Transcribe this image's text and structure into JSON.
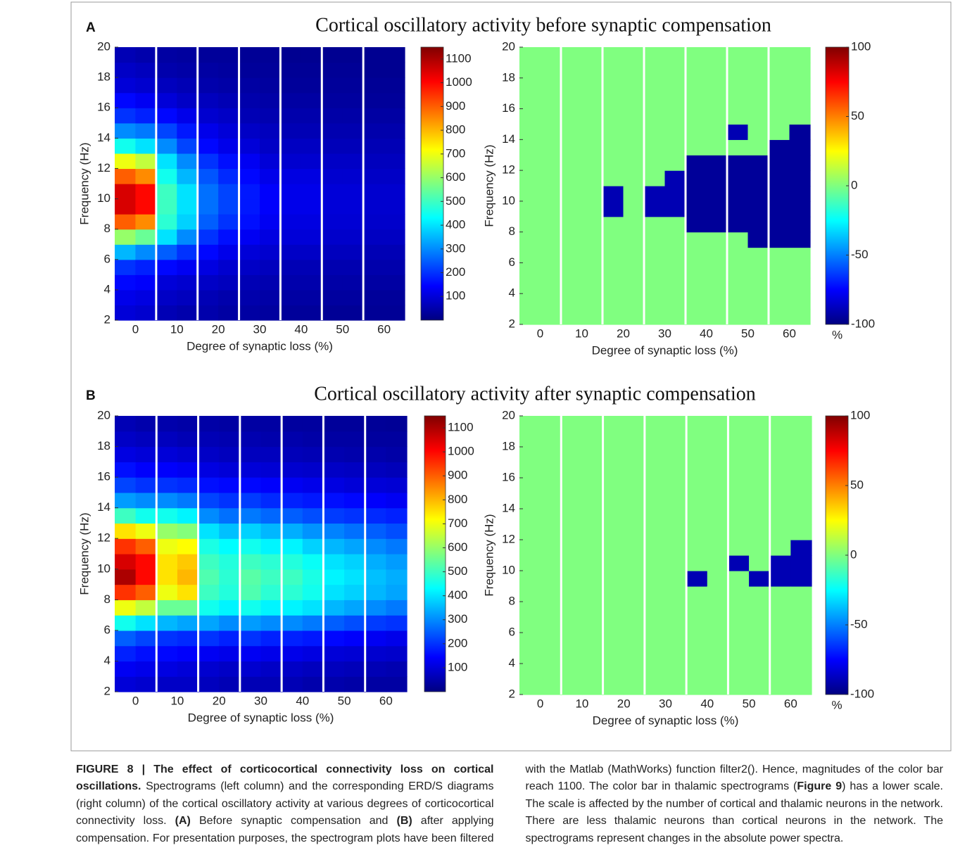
{
  "panels": [
    {
      "label": "A",
      "title": "Cortical oscillatory activity before synaptic compensation"
    },
    {
      "label": "B",
      "title": "Cortical oscillatory activity after synaptic compensation"
    }
  ],
  "chart_data": [
    {
      "type": "heatmap",
      "xlabel": "Degree of synaptic loss (%)",
      "ylabel": "Frequency (Hz)",
      "categories": [
        0,
        10,
        20,
        30,
        40,
        50,
        60
      ],
      "ylim": [
        2,
        20
      ],
      "yticks": [
        2,
        4,
        6,
        8,
        10,
        12,
        14,
        16,
        18,
        20
      ],
      "colorscale": "jet",
      "colorbar": {
        "lim": [
          0,
          1150
        ],
        "ticks": [
          100,
          200,
          300,
          400,
          500,
          600,
          700,
          800,
          900,
          1000,
          1100
        ]
      },
      "z": [
        [
          100,
          120,
          150,
          200,
          350,
          600,
          900,
          1050,
          1050,
          900,
          700,
          450,
          300,
          200,
          150,
          100,
          80,
          60
        ],
        [
          90,
          110,
          140,
          180,
          300,
          550,
          850,
          1000,
          1000,
          850,
          650,
          400,
          280,
          180,
          130,
          90,
          70,
          50
        ],
        [
          60,
          80,
          100,
          150,
          250,
          400,
          480,
          500,
          500,
          450,
          400,
          300,
          220,
          150,
          100,
          70,
          50,
          40
        ],
        [
          50,
          70,
          90,
          130,
          200,
          300,
          380,
          400,
          400,
          350,
          300,
          220,
          170,
          120,
          80,
          60,
          45,
          35
        ],
        [
          50,
          60,
          80,
          110,
          150,
          200,
          250,
          270,
          270,
          240,
          200,
          150,
          120,
          90,
          70,
          50,
          40,
          30
        ],
        [
          40,
          50,
          70,
          90,
          120,
          160,
          200,
          220,
          220,
          190,
          160,
          120,
          100,
          80,
          60,
          45,
          35,
          30
        ],
        [
          40,
          50,
          60,
          80,
          100,
          130,
          160,
          170,
          170,
          150,
          130,
          100,
          80,
          60,
          50,
          40,
          30,
          25
        ],
        [
          35,
          45,
          55,
          70,
          90,
          110,
          130,
          140,
          140,
          120,
          100,
          80,
          70,
          55,
          45,
          35,
          30,
          25
        ],
        [
          30,
          40,
          50,
          60,
          80,
          100,
          110,
          120,
          120,
          110,
          90,
          75,
          60,
          50,
          40,
          30,
          25,
          20
        ],
        [
          30,
          40,
          50,
          60,
          80,
          100,
          110,
          120,
          120,
          110,
          90,
          75,
          60,
          50,
          40,
          30,
          25,
          20
        ],
        [
          25,
          35,
          45,
          55,
          70,
          85,
          95,
          100,
          100,
          90,
          80,
          65,
          55,
          45,
          35,
          30,
          25,
          20
        ],
        [
          25,
          35,
          45,
          55,
          70,
          85,
          95,
          100,
          100,
          90,
          80,
          65,
          55,
          45,
          35,
          30,
          25,
          20
        ],
        [
          25,
          30,
          40,
          50,
          60,
          75,
          85,
          90,
          90,
          80,
          70,
          60,
          50,
          40,
          30,
          25,
          20,
          20
        ],
        [
          25,
          30,
          40,
          50,
          60,
          75,
          85,
          90,
          90,
          80,
          70,
          60,
          50,
          40,
          30,
          25,
          20,
          20
        ]
      ]
    },
    {
      "type": "heatmap",
      "xlabel": "Degree of synaptic loss (%)",
      "ylabel": "Frequency (Hz)",
      "categories": [
        0,
        10,
        20,
        30,
        40,
        50,
        60
      ],
      "ylim": [
        2,
        20
      ],
      "yticks": [
        2,
        4,
        6,
        8,
        10,
        12,
        14,
        16,
        18,
        20
      ],
      "colorscale": "jet",
      "colorbar": {
        "lim": [
          -100,
          100
        ],
        "ticks": [
          -100,
          -50,
          0,
          50,
          100
        ],
        "label": "%"
      },
      "z": [
        [
          0,
          0,
          0,
          0,
          0,
          0,
          0,
          0,
          0,
          0,
          0,
          0,
          0,
          0,
          0,
          0,
          0,
          0
        ],
        [
          0,
          0,
          0,
          0,
          0,
          0,
          0,
          0,
          0,
          0,
          0,
          0,
          0,
          0,
          0,
          0,
          0,
          0
        ],
        [
          0,
          0,
          0,
          0,
          0,
          0,
          0,
          0,
          0,
          0,
          0,
          0,
          0,
          0,
          0,
          0,
          0,
          0
        ],
        [
          0,
          0,
          0,
          0,
          0,
          0,
          0,
          0,
          0,
          0,
          0,
          0,
          0,
          0,
          0,
          0,
          0,
          0
        ],
        [
          0,
          0,
          0,
          0,
          0,
          0,
          0,
          -90,
          -90,
          0,
          0,
          0,
          0,
          0,
          0,
          0,
          0,
          0
        ],
        [
          0,
          0,
          0,
          0,
          0,
          0,
          0,
          0,
          0,
          0,
          0,
          0,
          0,
          0,
          0,
          0,
          0,
          0
        ],
        [
          0,
          0,
          0,
          0,
          0,
          0,
          0,
          -90,
          -90,
          0,
          0,
          0,
          0,
          0,
          0,
          0,
          0,
          0
        ],
        [
          0,
          0,
          0,
          0,
          0,
          0,
          0,
          -90,
          -90,
          -90,
          0,
          0,
          0,
          0,
          0,
          0,
          0,
          0
        ],
        [
          0,
          0,
          0,
          0,
          0,
          0,
          -95,
          -95,
          -95,
          -95,
          -95,
          0,
          0,
          0,
          0,
          0,
          0,
          0
        ],
        [
          0,
          0,
          0,
          0,
          0,
          0,
          -95,
          -95,
          -95,
          -95,
          -95,
          0,
          0,
          0,
          0,
          0,
          0,
          0
        ],
        [
          0,
          0,
          0,
          0,
          0,
          0,
          -95,
          -95,
          -95,
          -95,
          -95,
          0,
          -90,
          0,
          0,
          0,
          0,
          0
        ],
        [
          0,
          0,
          0,
          0,
          0,
          -95,
          -95,
          -95,
          -95,
          -95,
          -95,
          0,
          0,
          0,
          0,
          0,
          0,
          0
        ],
        [
          0,
          0,
          0,
          0,
          0,
          -95,
          -95,
          -95,
          -95,
          -95,
          -95,
          -95,
          0,
          0,
          0,
          0,
          0,
          0
        ],
        [
          0,
          0,
          0,
          0,
          0,
          -95,
          -95,
          -95,
          -95,
          -95,
          -95,
          -95,
          -95,
          0,
          0,
          0,
          0,
          0
        ]
      ]
    },
    {
      "type": "heatmap",
      "xlabel": "Degree of synaptic loss (%)",
      "ylabel": "Frequency (Hz)",
      "categories": [
        0,
        10,
        20,
        30,
        40,
        50,
        60
      ],
      "ylim": [
        2,
        20
      ],
      "yticks": [
        2,
        4,
        6,
        8,
        10,
        12,
        14,
        16,
        18,
        20
      ],
      "colorscale": "jet",
      "colorbar": {
        "lim": [
          0,
          1150
        ],
        "ticks": [
          100,
          200,
          300,
          400,
          500,
          600,
          700,
          800,
          900,
          1000,
          1100
        ]
      },
      "z": [
        [
          100,
          130,
          180,
          250,
          450,
          700,
          950,
          1100,
          1050,
          950,
          750,
          500,
          320,
          220,
          160,
          110,
          80,
          60
        ],
        [
          90,
          120,
          160,
          220,
          400,
          650,
          900,
          1000,
          1000,
          900,
          700,
          450,
          300,
          200,
          140,
          100,
          70,
          50
        ],
        [
          80,
          110,
          150,
          200,
          350,
          550,
          700,
          750,
          750,
          700,
          600,
          450,
          300,
          200,
          140,
          100,
          70,
          50
        ],
        [
          80,
          100,
          140,
          190,
          330,
          550,
          750,
          800,
          780,
          720,
          580,
          420,
          280,
          190,
          130,
          90,
          60,
          45
        ],
        [
          70,
          90,
          130,
          200,
          330,
          450,
          500,
          520,
          500,
          460,
          400,
          300,
          220,
          160,
          110,
          80,
          60,
          45
        ],
        [
          60,
          80,
          120,
          180,
          300,
          420,
          470,
          480,
          470,
          430,
          360,
          270,
          200,
          150,
          100,
          70,
          55,
          40
        ],
        [
          60,
          90,
          130,
          200,
          320,
          450,
          520,
          530,
          500,
          450,
          380,
          280,
          210,
          150,
          100,
          70,
          55,
          40
        ],
        [
          60,
          80,
          120,
          180,
          300,
          420,
          480,
          500,
          480,
          420,
          350,
          260,
          190,
          140,
          95,
          70,
          50,
          40
        ],
        [
          60,
          80,
          120,
          180,
          300,
          420,
          480,
          500,
          470,
          420,
          340,
          250,
          180,
          130,
          90,
          65,
          50,
          35
        ],
        [
          50,
          70,
          110,
          170,
          280,
          400,
          450,
          460,
          440,
          380,
          310,
          230,
          170,
          120,
          85,
          60,
          45,
          35
        ],
        [
          50,
          70,
          100,
          150,
          250,
          350,
          400,
          420,
          400,
          350,
          290,
          210,
          160,
          110,
          80,
          55,
          40,
          30
        ],
        [
          45,
          65,
          95,
          140,
          230,
          330,
          380,
          400,
          380,
          330,
          270,
          200,
          150,
          100,
          75,
          50,
          40,
          30
        ],
        [
          40,
          60,
          90,
          130,
          210,
          300,
          350,
          360,
          340,
          300,
          250,
          190,
          140,
          100,
          70,
          50,
          35,
          28
        ],
        [
          40,
          55,
          85,
          120,
          200,
          280,
          330,
          340,
          320,
          280,
          230,
          180,
          130,
          95,
          65,
          45,
          35,
          25
        ]
      ]
    },
    {
      "type": "heatmap",
      "xlabel": "Degree of synaptic loss (%)",
      "ylabel": "Frequency (Hz)",
      "categories": [
        0,
        10,
        20,
        30,
        40,
        50,
        60
      ],
      "ylim": [
        2,
        20
      ],
      "yticks": [
        2,
        4,
        6,
        8,
        10,
        12,
        14,
        16,
        18,
        20
      ],
      "colorscale": "jet",
      "colorbar": {
        "lim": [
          -100,
          100
        ],
        "ticks": [
          -100,
          -50,
          0,
          50,
          100
        ],
        "label": "%"
      },
      "z": [
        [
          0,
          0,
          0,
          0,
          0,
          0,
          0,
          0,
          0,
          0,
          0,
          0,
          0,
          0,
          0,
          0,
          0,
          0
        ],
        [
          0,
          0,
          0,
          0,
          0,
          0,
          0,
          0,
          0,
          0,
          0,
          0,
          0,
          0,
          0,
          0,
          0,
          0
        ],
        [
          0,
          0,
          0,
          0,
          0,
          0,
          0,
          0,
          0,
          0,
          0,
          0,
          0,
          0,
          0,
          0,
          0,
          0
        ],
        [
          0,
          0,
          0,
          0,
          0,
          0,
          0,
          0,
          0,
          0,
          0,
          0,
          0,
          0,
          0,
          0,
          0,
          0
        ],
        [
          0,
          0,
          0,
          0,
          0,
          0,
          0,
          0,
          0,
          0,
          0,
          0,
          0,
          0,
          0,
          0,
          0,
          0
        ],
        [
          0,
          0,
          0,
          0,
          0,
          0,
          0,
          0,
          0,
          0,
          0,
          0,
          0,
          0,
          0,
          0,
          0,
          0
        ],
        [
          0,
          0,
          0,
          0,
          0,
          0,
          0,
          0,
          0,
          0,
          0,
          0,
          0,
          0,
          0,
          0,
          0,
          0
        ],
        [
          0,
          0,
          0,
          0,
          0,
          0,
          0,
          0,
          0,
          0,
          0,
          0,
          0,
          0,
          0,
          0,
          0,
          0
        ],
        [
          0,
          0,
          0,
          0,
          0,
          0,
          0,
          -90,
          0,
          0,
          0,
          0,
          0,
          0,
          0,
          0,
          0,
          0
        ],
        [
          0,
          0,
          0,
          0,
          0,
          0,
          0,
          0,
          0,
          0,
          0,
          0,
          0,
          0,
          0,
          0,
          0,
          0
        ],
        [
          0,
          0,
          0,
          0,
          0,
          0,
          0,
          0,
          -90,
          0,
          0,
          0,
          0,
          0,
          0,
          0,
          0,
          0
        ],
        [
          0,
          0,
          0,
          0,
          0,
          0,
          0,
          -90,
          0,
          0,
          0,
          0,
          0,
          0,
          0,
          0,
          0,
          0
        ],
        [
          0,
          0,
          0,
          0,
          0,
          0,
          0,
          -90,
          -90,
          0,
          0,
          0,
          0,
          0,
          0,
          0,
          0,
          0
        ],
        [
          0,
          0,
          0,
          0,
          0,
          0,
          0,
          -90,
          -90,
          -90,
          0,
          0,
          0,
          0,
          0,
          0,
          0,
          0
        ]
      ]
    }
  ],
  "caption": [
    {
      "text": "FIGURE 8 | The effect of corticocortical connectivity loss on cortical oscillations.",
      "bold": true
    },
    {
      "text": " Spectrograms (left column) and the corresponding ERD/S diagrams (right column) of the cortical oscillatory activity at various degrees of corticocortical connectivity loss. ",
      "bold": false
    },
    {
      "text": "(A)",
      "bold": true
    },
    {
      "text": " Before synaptic compensation and ",
      "bold": false
    },
    {
      "text": "(B)",
      "bold": true
    },
    {
      "text": " after applying compensation. For presentation purposes, the spectrogram plots have been filtered with the Matlab (MathWorks) function filter2(). Hence, magnitudes of the color bar reach 1100. The color bar in thalamic spectrograms (",
      "bold": false
    },
    {
      "text": "Figure 9",
      "bold": true
    },
    {
      "text": ") has a lower scale. The scale is affected by the number of cortical and thalamic neurons in the network. There are less thalamic neurons than cortical neurons in the network. The spectrograms represent changes in the absolute power spectra.",
      "bold": false
    }
  ]
}
